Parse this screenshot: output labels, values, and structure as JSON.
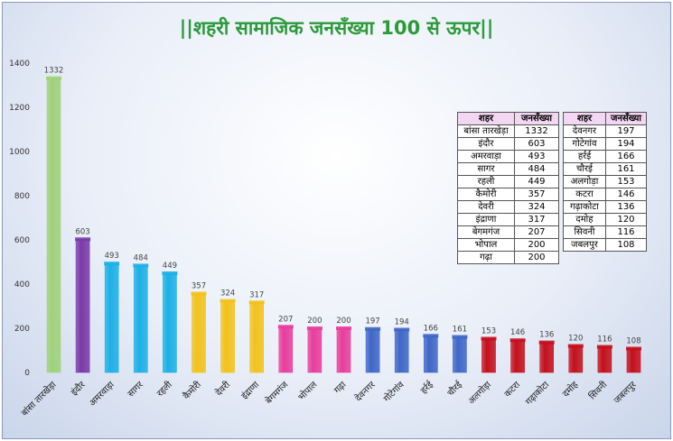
{
  "chart_data": {
    "type": "bar",
    "title": "||शहरी सामाजिक जनसँख्या 100 से ऊपर||",
    "categories": [
      "बांसा तारखेड़ा",
      "इंदौर",
      "अमरवाड़ा",
      "सागर",
      "रहली",
      "कैमोरी",
      "देवरी",
      "इंद्राणा",
      "बेगमगंज",
      "भोपाल",
      "गढ़ा",
      "देवनगर",
      "गोटेगांव",
      "हर्रई",
      "चौरई",
      "अलगोड़ा",
      "कटरा",
      "गढ़ाकोटा",
      "दमोह",
      "सिवनी",
      "जबलपुर"
    ],
    "values": [
      1332,
      603,
      493,
      484,
      449,
      357,
      324,
      317,
      207,
      200,
      200,
      197,
      194,
      166,
      161,
      153,
      146,
      136,
      120,
      116,
      108
    ],
    "colors": [
      "#9ed27a",
      "#7a3aa8",
      "#1cb0e6",
      "#1cb0e6",
      "#1cb0e6",
      "#f2c21a",
      "#f2c21a",
      "#f2c21a",
      "#e83d9c",
      "#e83d9c",
      "#e83d9c",
      "#3f66c8",
      "#3f66c8",
      "#3f66c8",
      "#3f66c8",
      "#c4101b",
      "#c4101b",
      "#c4101b",
      "#c4101b",
      "#c4101b",
      "#c4101b"
    ],
    "ylim": [
      0,
      1400
    ],
    "yticks": [
      0,
      200,
      400,
      600,
      800,
      1000,
      1200,
      1400
    ],
    "xlabel": "",
    "ylabel": "",
    "grid": false,
    "legend": "none"
  },
  "table": {
    "headers": [
      "शहर",
      "जनसँख्या",
      "शहर",
      "जनसँख्या"
    ],
    "left_rows": [
      [
        "बांसा तारखेड़ा",
        "1332"
      ],
      [
        "इंदौर",
        "603"
      ],
      [
        "अमरवाड़ा",
        "493"
      ],
      [
        "सागर",
        "484"
      ],
      [
        "रहली",
        "449"
      ],
      [
        "कैमोरी",
        "357"
      ],
      [
        "देवरी",
        "324"
      ],
      [
        "इंद्राणा",
        "317"
      ],
      [
        "बेगमगंज",
        "207"
      ],
      [
        "भोपाल",
        "200"
      ],
      [
        "गढ़ा",
        "200"
      ]
    ],
    "right_rows": [
      [
        "देवनगर",
        "197"
      ],
      [
        "गोटेगांव",
        "194"
      ],
      [
        "हर्रई",
        "166"
      ],
      [
        "चौरई",
        "161"
      ],
      [
        "अलगोड़ा",
        "153"
      ],
      [
        "कटरा",
        "146"
      ],
      [
        "गढ़ाकोटा",
        "136"
      ],
      [
        "दमोह",
        "120"
      ],
      [
        "सिवनी",
        "116"
      ],
      [
        "जबलपुर",
        "108"
      ]
    ]
  }
}
